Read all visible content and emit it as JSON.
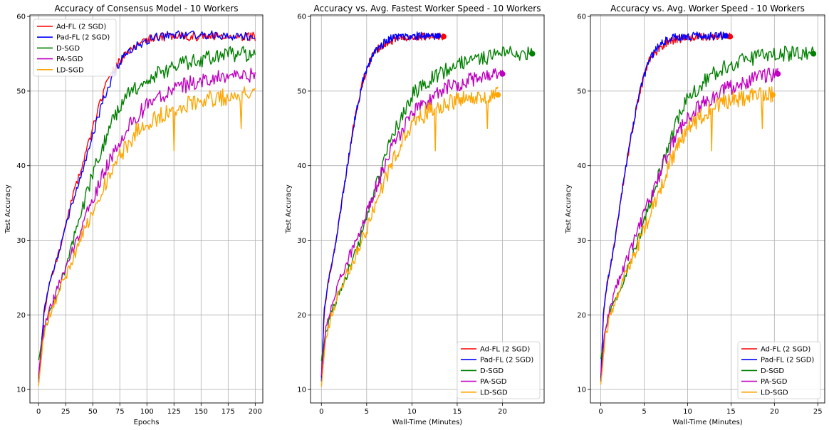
{
  "figure": {
    "background": "#ffffff"
  },
  "chart_data": [
    {
      "type": "line",
      "title": "Accuracy of Consensus Model - 10 Workers",
      "xlabel": "Epochs",
      "ylabel": "Test Accuracy",
      "xlim": [
        -8,
        207
      ],
      "ylim": [
        8.2,
        60.2
      ],
      "xticks": [
        0,
        25,
        50,
        75,
        100,
        125,
        150,
        175,
        200
      ],
      "yticks": [
        10,
        20,
        30,
        40,
        50,
        60
      ],
      "grid": true,
      "legend": "top-left",
      "show_end_markers": false,
      "series": [
        {
          "name": "Ad-FL (2 SGD)",
          "color": "#ff0000",
          "x_end": 200,
          "x": [
            0,
            5,
            10,
            20,
            30,
            40,
            50,
            60,
            70,
            80,
            90,
            100,
            110,
            120,
            140,
            160,
            180,
            200
          ],
          "y": [
            11.5,
            20,
            24,
            29,
            35,
            40,
            45,
            50,
            53,
            55,
            56,
            57,
            57.2,
            57.3,
            57.3,
            57.3,
            57.3,
            57.3
          ],
          "noise": 0.5,
          "dips": [],
          "seed": 11
        },
        {
          "name": "Pad-FL (2 SGD)",
          "color": "#0000ff",
          "x_end": 200,
          "x": [
            0,
            5,
            10,
            20,
            30,
            40,
            50,
            60,
            70,
            80,
            90,
            100,
            110,
            120,
            140,
            160,
            180,
            200
          ],
          "y": [
            11,
            20.5,
            24,
            29,
            34.5,
            39,
            44,
            49,
            52.5,
            55,
            56,
            56.8,
            57.3,
            57.5,
            57.5,
            57.5,
            57.4,
            57.4
          ],
          "noise": 0.5,
          "dips": [],
          "seed": 12
        },
        {
          "name": "D-SGD",
          "color": "#008000",
          "x_end": 200,
          "x": [
            0,
            5,
            10,
            20,
            30,
            40,
            50,
            60,
            70,
            80,
            90,
            100,
            110,
            120,
            140,
            160,
            180,
            200
          ],
          "y": [
            14,
            18,
            20,
            24,
            29,
            34,
            39,
            43,
            46.5,
            49,
            50.5,
            51.5,
            52.3,
            53,
            54,
            54.6,
            55,
            55
          ],
          "noise": 0.9,
          "dips": [],
          "seed": 13
        },
        {
          "name": "PA-SGD",
          "color": "#c000c0",
          "x_end": 200,
          "x": [
            0,
            5,
            10,
            20,
            30,
            40,
            50,
            60,
            70,
            80,
            90,
            100,
            110,
            120,
            140,
            160,
            180,
            200
          ],
          "y": [
            12,
            18.5,
            20.5,
            24.5,
            28,
            32,
            35.5,
            39,
            42,
            44.5,
            46.5,
            48,
            49,
            50,
            51,
            51.6,
            52,
            52.2
          ],
          "noise": 0.9,
          "dips": [],
          "seed": 14
        },
        {
          "name": "LD-SGD",
          "color": "#ffa500",
          "x_end": 200,
          "x": [
            0,
            5,
            10,
            20,
            30,
            40,
            50,
            60,
            70,
            80,
            90,
            100,
            110,
            120,
            140,
            160,
            180,
            200
          ],
          "y": [
            10.5,
            17.5,
            20,
            23.5,
            27,
            30.5,
            33.5,
            37,
            40,
            42.5,
            44.5,
            45.5,
            46.5,
            47.5,
            48.5,
            49,
            49.3,
            49.5
          ],
          "noise": 1.0,
          "dips": [
            [
              125,
              42
            ],
            [
              187,
              45
            ]
          ],
          "seed": 15
        }
      ]
    },
    {
      "type": "line",
      "title": "Accuracy vs. Avg. Fastest Worker Speed - 10 Workers",
      "xlabel": "Wall-Time (Minutes)",
      "ylabel": "Test Accuracy",
      "xlim": [
        -1.2,
        24.6
      ],
      "ylim": [
        8.2,
        60.2
      ],
      "xticks": [
        0,
        5,
        10,
        15,
        20
      ],
      "yticks": [
        10,
        20,
        30,
        40,
        50,
        60
      ],
      "grid": true,
      "legend": "bottom-right",
      "show_end_markers": true,
      "series": [
        {
          "name": "Ad-FL (2 SGD)",
          "color": "#ff0000",
          "x_end": 13.5,
          "x": [
            0,
            0.3,
            0.7,
            1.5,
            2.5,
            3.5,
            4.5,
            5.5,
            6.5,
            7.5,
            9,
            11,
            13.5
          ],
          "y": [
            11.5,
            20,
            24,
            29,
            37,
            45,
            51,
            54.5,
            56,
            56.7,
            57.2,
            57.3,
            57.3
          ],
          "noise": 0.45,
          "dips": [],
          "seed": 21
        },
        {
          "name": "Pad-FL (2 SGD)",
          "color": "#0000ff",
          "x_end": 12.9,
          "x": [
            0,
            0.3,
            0.7,
            1.5,
            2.5,
            3.5,
            4.5,
            5.5,
            6.5,
            7.5,
            9,
            11,
            12.9
          ],
          "y": [
            11,
            20.5,
            24,
            29,
            37,
            45,
            51,
            54.5,
            56,
            57,
            57.3,
            57.4,
            57.4
          ],
          "noise": 0.45,
          "dips": [],
          "seed": 22
        },
        {
          "name": "D-SGD",
          "color": "#008000",
          "x_end": 23.3,
          "x": [
            0,
            0.5,
            1,
            2,
            3,
            4,
            5,
            6,
            7,
            8,
            9,
            10,
            12,
            14,
            16,
            18,
            20,
            22,
            23.3
          ],
          "y": [
            14,
            17.5,
            20,
            23,
            26,
            29,
            33,
            37,
            41,
            44.5,
            47,
            49.5,
            51.5,
            53,
            54,
            54.5,
            55,
            55,
            55
          ],
          "noise": 0.85,
          "dips": [],
          "seed": 23
        },
        {
          "name": "PA-SGD",
          "color": "#c000c0",
          "x_end": 20,
          "x": [
            0,
            0.5,
            1,
            2,
            3,
            4,
            5,
            6,
            7,
            8,
            9,
            10,
            12,
            14,
            16,
            18,
            20
          ],
          "y": [
            12,
            18,
            20.5,
            24.5,
            27.5,
            30.5,
            33.5,
            37,
            40,
            43,
            45,
            47,
            49,
            50.5,
            51.3,
            52,
            52.3
          ],
          "noise": 0.85,
          "dips": [],
          "seed": 24
        },
        {
          "name": "LD-SGD",
          "color": "#ffa500",
          "x_end": 19.5,
          "x": [
            0,
            0.5,
            1,
            2,
            3,
            4,
            5,
            6,
            7,
            8,
            9,
            10,
            12,
            14,
            16,
            18,
            19.5
          ],
          "y": [
            10.5,
            17,
            19.5,
            23,
            26,
            28.5,
            31.5,
            35,
            38,
            41,
            43.5,
            45.5,
            47.5,
            48.5,
            49,
            49.3,
            49.5
          ],
          "noise": 0.95,
          "dips": [
            [
              12.6,
              42
            ],
            [
              18.3,
              45
            ]
          ],
          "seed": 25
        }
      ]
    },
    {
      "type": "line",
      "title": "Accuracy vs. Avg. Worker Speed - 10 Workers",
      "xlabel": "Wall-Time (Minutes)",
      "ylabel": "Test Accuracy",
      "xlim": [
        -1.2,
        25.8
      ],
      "ylim": [
        8.2,
        60.2
      ],
      "xticks": [
        0,
        5,
        10,
        15,
        20,
        25
      ],
      "yticks": [
        10,
        20,
        30,
        40,
        50,
        60
      ],
      "grid": true,
      "legend": "bottom-right",
      "show_end_markers": true,
      "series": [
        {
          "name": "Ad-FL (2 SGD)",
          "color": "#ff0000",
          "x_end": 14.9,
          "x": [
            0,
            0.3,
            0.7,
            1.5,
            2.5,
            3.5,
            4.5,
            5.5,
            6.5,
            7.5,
            9,
            11,
            13,
            14.9
          ],
          "y": [
            11.5,
            20,
            24,
            29,
            37,
            44,
            50,
            54,
            55.5,
            56.5,
            57,
            57.3,
            57.3,
            57.3
          ],
          "noise": 0.45,
          "dips": [],
          "seed": 31
        },
        {
          "name": "Pad-FL (2 SGD)",
          "color": "#0000ff",
          "x_end": 14.4,
          "x": [
            0,
            0.3,
            0.7,
            1.5,
            2.5,
            3.5,
            4.5,
            5.5,
            6.5,
            7.5,
            9,
            11,
            13,
            14.4
          ],
          "y": [
            11,
            20.5,
            24,
            29,
            37,
            44,
            50,
            54,
            55.8,
            56.8,
            57.3,
            57.4,
            57.4,
            57.4
          ],
          "noise": 0.45,
          "dips": [],
          "seed": 32
        },
        {
          "name": "D-SGD",
          "color": "#008000",
          "x_end": 24.5,
          "x": [
            0,
            0.5,
            1,
            2,
            3,
            4,
            5,
            6,
            7,
            8,
            9,
            10,
            12,
            14,
            16,
            18,
            20,
            22,
            24.5
          ],
          "y": [
            14,
            17.5,
            20,
            23,
            26,
            29,
            32.5,
            36,
            40,
            43.5,
            46.5,
            49,
            51.5,
            53,
            54,
            54.5,
            55,
            55,
            55
          ],
          "noise": 0.85,
          "dips": [],
          "seed": 33
        },
        {
          "name": "PA-SGD",
          "color": "#c000c0",
          "x_end": 20.4,
          "x": [
            0,
            0.5,
            1,
            2,
            3,
            4,
            5,
            6,
            7,
            8,
            9,
            10,
            12,
            14,
            16,
            18,
            20.4
          ],
          "y": [
            12,
            18,
            20.5,
            24.5,
            27.5,
            30.5,
            33.5,
            36.5,
            39.5,
            42.5,
            44.5,
            46.5,
            48.5,
            50,
            51,
            51.8,
            52.3
          ],
          "noise": 0.85,
          "dips": [],
          "seed": 34
        },
        {
          "name": "LD-SGD",
          "color": "#ffa500",
          "x_end": 19.8,
          "x": [
            0,
            0.5,
            1,
            2,
            3,
            4,
            5,
            6,
            7,
            8,
            9,
            10,
            12,
            14,
            16,
            18,
            19.8
          ],
          "y": [
            10.5,
            17,
            19.5,
            23,
            26,
            28.5,
            31.5,
            34.5,
            37.5,
            40.5,
            43,
            45,
            47,
            48.5,
            49,
            49.3,
            49.5
          ],
          "noise": 0.95,
          "dips": [
            [
              12.8,
              42
            ],
            [
              18.6,
              45
            ]
          ],
          "seed": 35
        }
      ]
    }
  ]
}
